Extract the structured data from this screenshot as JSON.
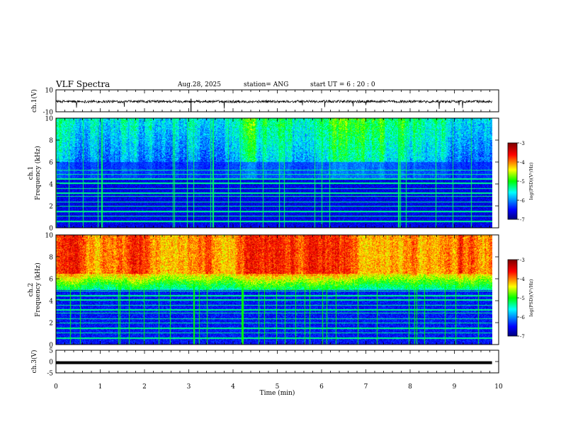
{
  "header": {
    "title": "VLF Spectra",
    "date": "Aug.28, 2025",
    "station": "station= ANG",
    "start": "start  UT =   6  : 20 : 0"
  },
  "chart_data": [
    {
      "type": "line",
      "name": "waveform-ch1",
      "ylabel": "ch.1(V)",
      "ylim": [
        -10,
        10
      ],
      "yticks": [
        "10",
        "-10"
      ],
      "baseline_level": 0,
      "note": "dense noisy waveform around 0 V with occasional negative spikes"
    },
    {
      "type": "heatmap",
      "name": "spectrogram-ch1",
      "ylabel_line1": "ch.1",
      "ylabel_line2": "Frequency  (kHz)",
      "ylim": [
        0,
        10
      ],
      "yticks": [
        "0",
        "2",
        "4",
        "6",
        "8",
        "10"
      ],
      "colorbar": {
        "label": "log(PSD)(V²/Hz)",
        "ticks": [
          "-3",
          "-4",
          "-5",
          "-6",
          "-7"
        ],
        "range": [
          -7,
          -3
        ]
      }
    },
    {
      "type": "heatmap",
      "name": "spectrogram-ch2",
      "ylabel_line1": "ch.2",
      "ylabel_line2": "Frequency  (kHz)",
      "ylim": [
        0,
        10
      ],
      "yticks": [
        "0",
        "2",
        "4",
        "6",
        "8",
        "10"
      ],
      "colorbar": {
        "label": "log(PSD)(V²/Hz)",
        "ticks": [
          "-3",
          "-4",
          "-5",
          "-6",
          "-7"
        ],
        "range": [
          -7,
          -3
        ]
      }
    },
    {
      "type": "line",
      "name": "level-ch3",
      "ylabel": "ch.3(V)",
      "ylim": [
        -5,
        5
      ],
      "yticks": [
        "5",
        "0",
        "-5"
      ],
      "constant_value": -0.5
    }
  ],
  "x_axis": {
    "label": "Time  (min)",
    "range": [
      0,
      10
    ],
    "ticks": [
      "0",
      "1",
      "2",
      "3",
      "4",
      "5",
      "6",
      "7",
      "8",
      "9",
      "10"
    ],
    "data_end": 9.85
  }
}
